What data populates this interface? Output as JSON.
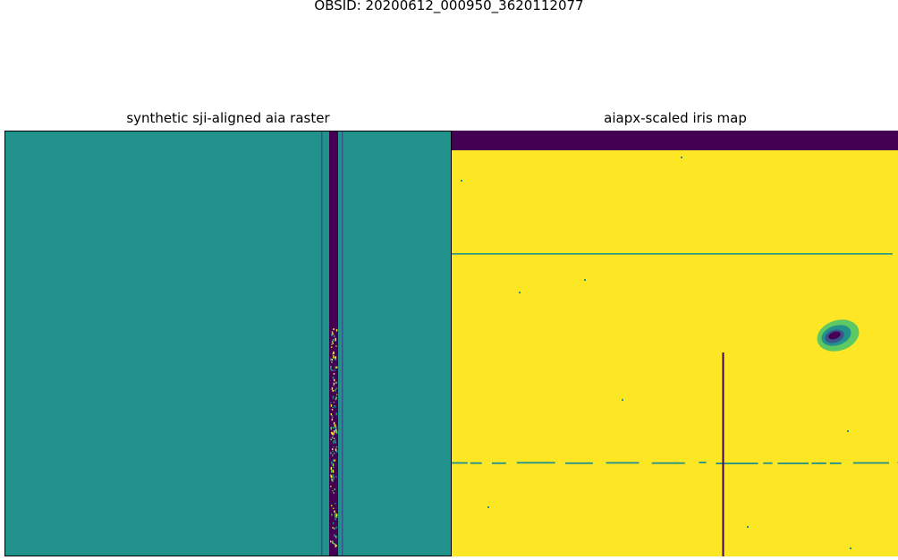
{
  "figure": {
    "suptitle": "OBSID: 20200612_000950_3620112077"
  },
  "panels": [
    {
      "title": "synthetic sji-aligned aia raster"
    },
    {
      "title": "aiapx-scaled iris map"
    }
  ],
  "colors": {
    "viridis_low": "#440154",
    "viridis_mid": "#21918c",
    "viridis_high": "#fde725",
    "viridis_lowmid": "#3b528b",
    "viridis_midhigh": "#5ec962"
  }
}
